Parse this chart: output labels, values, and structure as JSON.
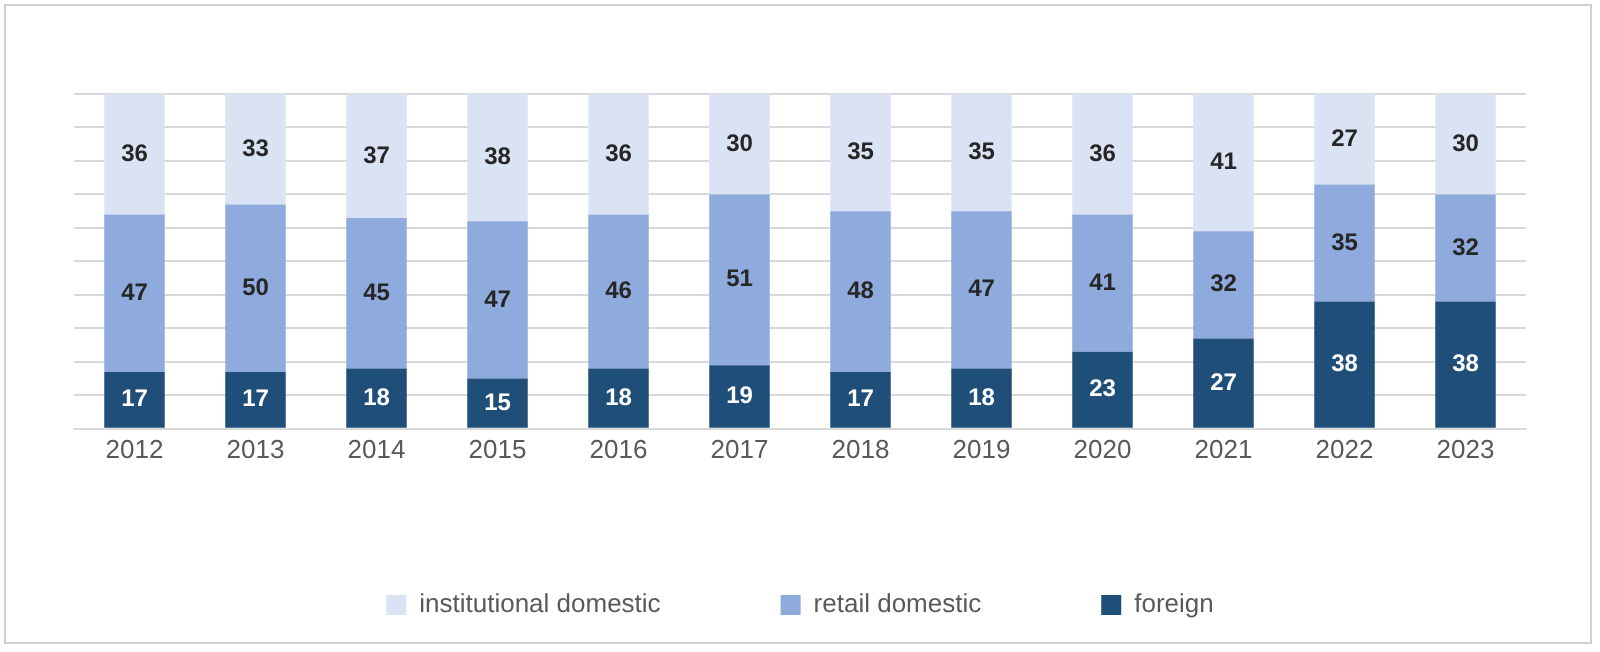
{
  "chart_data": {
    "type": "bar",
    "stacked": true,
    "categories": [
      "2012",
      "2013",
      "2014",
      "2015",
      "2016",
      "2017",
      "2018",
      "2019",
      "2020",
      "2021",
      "2022",
      "2023"
    ],
    "series": [
      {
        "name": "foreign",
        "color": "#1f4e79",
        "values": [
          17,
          17,
          18,
          15,
          18,
          19,
          17,
          18,
          23,
          27,
          38,
          38
        ]
      },
      {
        "name": "retail domestic",
        "color": "#8faadc",
        "values": [
          47,
          50,
          45,
          47,
          46,
          51,
          48,
          47,
          41,
          32,
          35,
          32
        ]
      },
      {
        "name": "institutional domestic",
        "color": "#dae3f3",
        "values": [
          36,
          33,
          37,
          38,
          36,
          30,
          35,
          35,
          36,
          41,
          27,
          30
        ]
      }
    ],
    "ylim": [
      0,
      100
    ],
    "yticks": [
      {
        "value": 0,
        "label": null
      },
      {
        "value": 10,
        "label": null
      },
      {
        "value": 20,
        "label": null
      },
      {
        "value": 30,
        "label": null
      },
      {
        "value": 40,
        "label": null
      },
      {
        "value": 50,
        "label": null
      },
      {
        "value": 60,
        "label": null
      },
      {
        "value": 70,
        "label": null
      },
      {
        "value": 80,
        "label": null
      },
      {
        "value": 90,
        "label": null
      },
      {
        "value": 100,
        "label": null
      }
    ],
    "tick_labels": "x",
    "grid": "y",
    "legend": "bottom",
    "data_labels": true
  }
}
